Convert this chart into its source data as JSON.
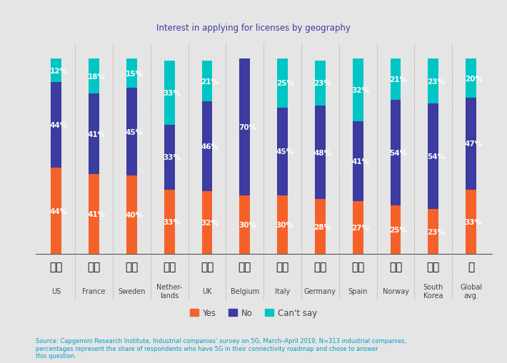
{
  "title": "Interest in applying for licenses by geography",
  "categories": [
    "US",
    "France",
    "Sweden",
    "Nether-\nlands",
    "UK",
    "Belgium",
    "Italy",
    "Germany",
    "Spain",
    "Norway",
    "South\nKorea",
    "Global\navg."
  ],
  "yes": [
    44,
    41,
    40,
    33,
    32,
    30,
    30,
    28,
    27,
    25,
    23,
    33
  ],
  "no": [
    44,
    41,
    45,
    33,
    46,
    70,
    45,
    48,
    41,
    54,
    54,
    47
  ],
  "cant_say": [
    12,
    18,
    15,
    33,
    21,
    0,
    25,
    23,
    32,
    21,
    23,
    20
  ],
  "yes_color": "#f4622a",
  "no_color": "#3b3ba0",
  "cant_say_color": "#00c5c5",
  "background_color": "#e5e5e5",
  "title_color": "#3b3ba0",
  "source_text": "Source: Capgemini Research Institute, Industrial companies’ survey on 5G, March–April 2019, N=313 industrial companies,\npercentages represent the share of respondents who have 5G in their connectivity roadmap and chose to answer\nthis question.",
  "source_color": "#00a0c6",
  "bar_width": 0.28,
  "label_fontsize": 7.5,
  "title_fontsize": 8.5
}
